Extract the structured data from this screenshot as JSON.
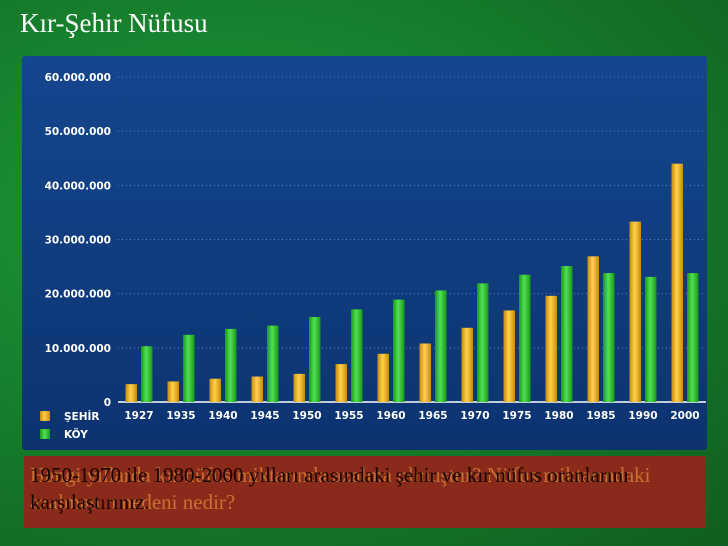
{
  "slide": {
    "title": "Kır-Şehir Nüfusu",
    "question_front": "1950-1970 ile 1980-2000 yılları arasındaki şehir ve kır nüfus oranlarını karşılaştırınız.",
    "question_back": "Hangi yıllarda kır nüfus miktarında azalma olmuştur? Nüfus miktarındaki azalmanın nedeni nedir?"
  },
  "chart_data": {
    "type": "bar",
    "title": "",
    "xlabel": "",
    "ylabel": "",
    "ylim": [
      0,
      60000000
    ],
    "y_ticks": [
      "0",
      "10.000.000",
      "20.000.000",
      "30.000.000",
      "40.000.000",
      "50.000.000",
      "60.000.000"
    ],
    "grid": true,
    "legend_position": "bottom-left",
    "categories": [
      "1927",
      "1935",
      "1940",
      "1945",
      "1950",
      "1955",
      "1960",
      "1965",
      "1970",
      "1975",
      "1980",
      "1985",
      "1990",
      "2000"
    ],
    "series": [
      {
        "name": "ŞEHİR",
        "color": "#f2b21e",
        "values": [
          3300000,
          3800000,
          4300000,
          4700000,
          5200000,
          7000000,
          8900000,
          10800000,
          13700000,
          16900000,
          19600000,
          26900000,
          33300000,
          44000000
        ]
      },
      {
        "name": "KÖY",
        "color": "#2ec02e",
        "values": [
          10300000,
          12400000,
          13500000,
          14100000,
          15700000,
          17100000,
          18900000,
          20600000,
          21900000,
          23500000,
          25100000,
          23800000,
          23100000,
          23800000
        ]
      }
    ]
  }
}
